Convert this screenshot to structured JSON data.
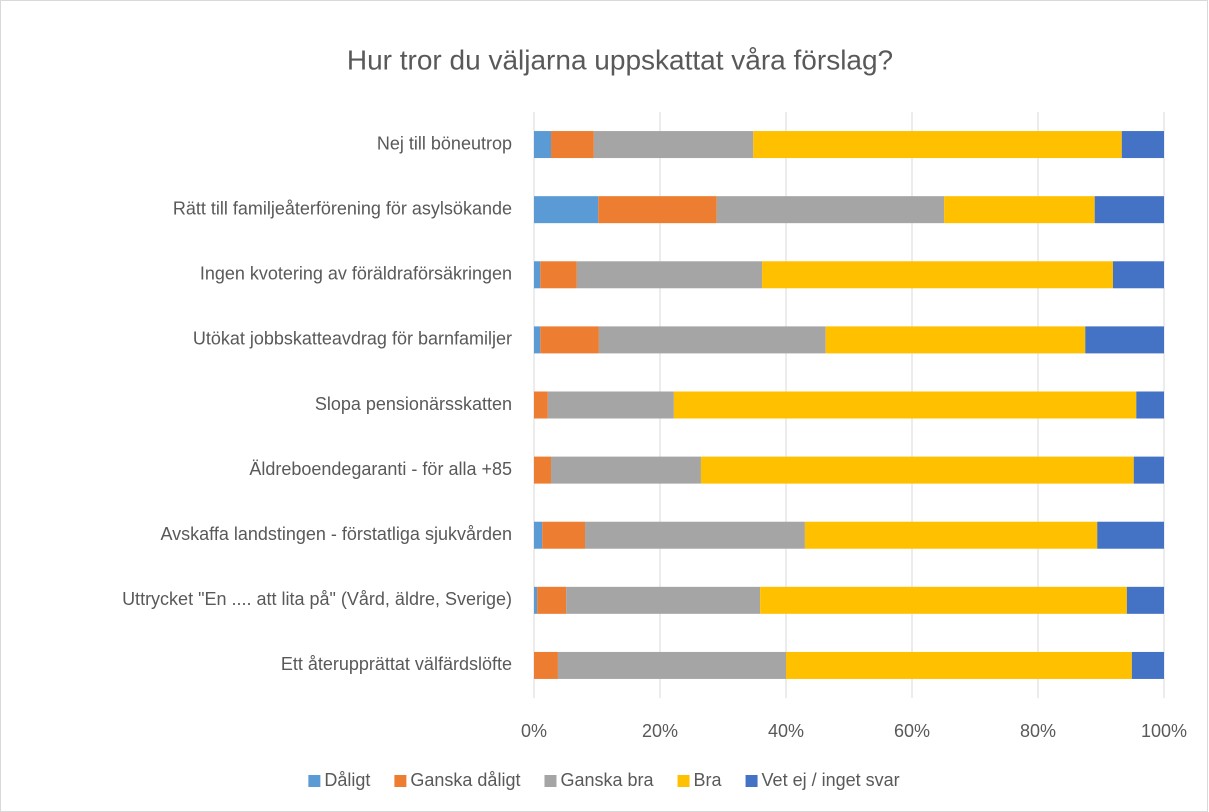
{
  "chart_data": {
    "type": "bar",
    "orientation": "horizontal",
    "stacked": true,
    "title": "Hur tror du väljarna uppskattat våra förslag?",
    "categories": [
      "Nej till böneutrop",
      "Rätt till familjeåterförening för asylsökande",
      "Ingen kvotering av föräldraförsäkringen",
      "Utökat jobbskatteavdrag för barnfamiljer",
      "Slopa pensionärsskatten",
      "Äldreboendegaranti - för alla +85",
      "Avskaffa landstingen - förstatliga sjukvården",
      "Uttrycket \"En .... att  lita på\" (Vård, äldre, Sverige)",
      "Ett återupprättat välfärdslöfte"
    ],
    "series": [
      {
        "name": "Dåligt",
        "color": "#5b9bd5",
        "values": [
          2.7,
          10.2,
          1.0,
          1.0,
          0,
          0,
          1.3,
          0.5,
          0
        ]
      },
      {
        "name": "Ganska dåligt",
        "color": "#ed7d31",
        "values": [
          6.8,
          18.8,
          5.8,
          9.3,
          2.2,
          2.7,
          6.8,
          4.6,
          3.8
        ]
      },
      {
        "name": "Ganska bra",
        "color": "#a5a5a5",
        "values": [
          25.3,
          36.1,
          29.4,
          36.0,
          20.0,
          23.8,
          34.9,
          30.8,
          36.2
        ]
      },
      {
        "name": "Bra",
        "color": "#ffc000",
        "values": [
          58.5,
          23.9,
          55.7,
          41.2,
          73.4,
          68.7,
          46.4,
          58.2,
          54.9
        ]
      },
      {
        "name": "Vet ej / inget svar",
        "color": "#4472c4",
        "values": [
          6.7,
          11.0,
          8.1,
          12.5,
          4.4,
          4.8,
          10.6,
          5.9,
          5.1
        ]
      }
    ],
    "xlim": [
      0,
      100
    ],
    "xticks": [
      {
        "value": 0,
        "label": "0%"
      },
      {
        "value": 20,
        "label": "20%"
      },
      {
        "value": 40,
        "label": "40%"
      },
      {
        "value": 60,
        "label": "60%"
      },
      {
        "value": 80,
        "label": "80%"
      },
      {
        "value": 100,
        "label": "100%"
      }
    ],
    "grid": true,
    "legend": "bottom"
  }
}
